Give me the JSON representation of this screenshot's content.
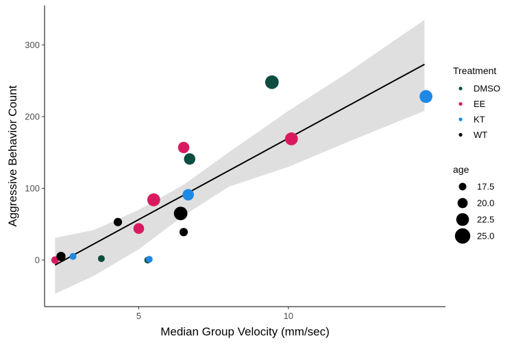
{
  "chart_data": {
    "type": "scatter",
    "xlabel": "Median Group Velocity (mm/sec)",
    "ylabel": "Aggressive Behavior Count",
    "xlim": [
      1.85,
      15.25
    ],
    "ylim": [
      -65,
      355
    ],
    "xticks": [
      5,
      10
    ],
    "yticks": [
      0,
      100,
      200,
      300
    ],
    "grid": false,
    "legend_placement": "right",
    "legend_treatment": {
      "title": "Treatment",
      "entries": [
        {
          "name": "DMSO",
          "color": "#0d4d40"
        },
        {
          "name": "EE",
          "color": "#d81b60"
        },
        {
          "name": "KT",
          "color": "#1e88e5"
        },
        {
          "name": "WT",
          "color": "#000000"
        }
      ]
    },
    "legend_size": {
      "title": "age",
      "entries": [
        {
          "label": "17.5",
          "value": 17.5
        },
        {
          "label": "20.0",
          "value": 20.0
        },
        {
          "label": "22.5",
          "value": 22.5
        },
        {
          "label": "25.0",
          "value": 25.0
        }
      ]
    },
    "points": [
      {
        "x": 2.2,
        "y": 0,
        "treatment": "EE",
        "age": 17
      },
      {
        "x": 2.4,
        "y": 5,
        "treatment": "WT",
        "age": 19
      },
      {
        "x": 2.8,
        "y": 5,
        "treatment": "KT",
        "age": 16
      },
      {
        "x": 3.75,
        "y": 2,
        "treatment": "DMSO",
        "age": 16
      },
      {
        "x": 4.3,
        "y": 53,
        "treatment": "WT",
        "age": 18
      },
      {
        "x": 5.0,
        "y": 44,
        "treatment": "EE",
        "age": 21
      },
      {
        "x": 5.3,
        "y": 0,
        "treatment": "DMSO",
        "age": 16
      },
      {
        "x": 5.35,
        "y": 1,
        "treatment": "KT",
        "age": 16
      },
      {
        "x": 5.5,
        "y": 84,
        "treatment": "EE",
        "age": 24
      },
      {
        "x": 6.4,
        "y": 65,
        "treatment": "WT",
        "age": 25
      },
      {
        "x": 6.5,
        "y": 157,
        "treatment": "EE",
        "age": 22
      },
      {
        "x": 6.5,
        "y": 39,
        "treatment": "WT",
        "age": 18
      },
      {
        "x": 6.65,
        "y": 91,
        "treatment": "KT",
        "age": 22
      },
      {
        "x": 6.7,
        "y": 141,
        "treatment": "DMSO",
        "age": 22
      },
      {
        "x": 9.45,
        "y": 248,
        "treatment": "DMSO",
        "age": 25
      },
      {
        "x": 10.1,
        "y": 169,
        "treatment": "EE",
        "age": 24
      },
      {
        "x": 14.6,
        "y": 228,
        "treatment": "KT",
        "age": 24
      }
    ],
    "trend": {
      "x0": 2.2,
      "y0": -7,
      "x1": 14.55,
      "y1": 273,
      "band": [
        {
          "x": 2.2,
          "lo": -47,
          "hi": 31
        },
        {
          "x": 3.5,
          "lo": -22,
          "hi": 42
        },
        {
          "x": 5.0,
          "lo": 15,
          "hi": 70
        },
        {
          "x": 6.5,
          "lo": 62,
          "hi": 105
        },
        {
          "x": 8.0,
          "lo": 102,
          "hi": 150
        },
        {
          "x": 10.0,
          "lo": 130,
          "hi": 208
        },
        {
          "x": 12.0,
          "lo": 165,
          "hi": 262
        },
        {
          "x": 14.55,
          "lo": 208,
          "hi": 335
        }
      ]
    }
  }
}
